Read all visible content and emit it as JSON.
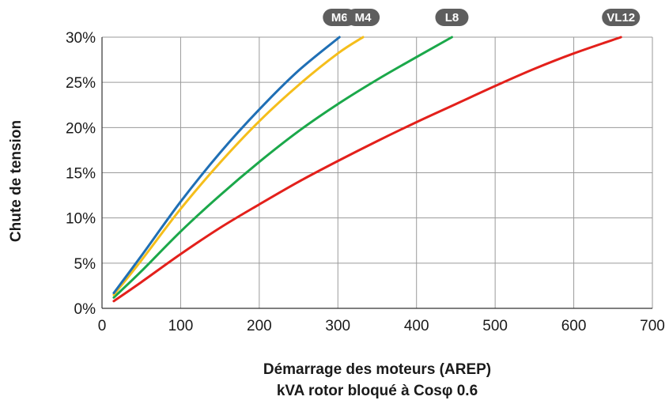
{
  "chart_data": {
    "type": "line",
    "xlabel": [
      "Démarrage des moteurs (AREP)",
      "kVA rotor bloqué à Cosφ 0.6"
    ],
    "ylabel": "Chute de tension",
    "xlim": [
      0,
      700
    ],
    "ylim": [
      0,
      30
    ],
    "x_ticks": [
      0,
      100,
      200,
      300,
      400,
      500,
      600,
      700
    ],
    "y_ticks": [
      0,
      5,
      10,
      15,
      20,
      25,
      30
    ],
    "y_tick_labels": [
      "0%",
      "5%",
      "10%",
      "15%",
      "20%",
      "25%",
      "30%"
    ],
    "grid": true,
    "legend": "end-of-line tags above plot",
    "series": [
      {
        "name": "M6",
        "color": "#1f6fb5",
        "points": [
          [
            15,
            1.7
          ],
          [
            50,
            5.8
          ],
          [
            100,
            11.8
          ],
          [
            150,
            17.2
          ],
          [
            200,
            22.0
          ],
          [
            250,
            26.3
          ],
          [
            302,
            30.0
          ]
        ]
      },
      {
        "name": "M4",
        "color": "#f5be1b",
        "points": [
          [
            15,
            1.5
          ],
          [
            50,
            5.3
          ],
          [
            100,
            11.0
          ],
          [
            150,
            16.1
          ],
          [
            200,
            20.7
          ],
          [
            250,
            24.7
          ],
          [
            300,
            28.2
          ],
          [
            332,
            30.0
          ]
        ]
      },
      {
        "name": "L8",
        "color": "#1ba84a",
        "points": [
          [
            15,
            1.2
          ],
          [
            50,
            4.1
          ],
          [
            100,
            8.5
          ],
          [
            150,
            12.5
          ],
          [
            200,
            16.2
          ],
          [
            250,
            19.6
          ],
          [
            300,
            22.6
          ],
          [
            350,
            25.3
          ],
          [
            400,
            27.8
          ],
          [
            445,
            30.0
          ]
        ]
      },
      {
        "name": "VL12",
        "color": "#e3201b",
        "points": [
          [
            15,
            0.8
          ],
          [
            50,
            2.9
          ],
          [
            100,
            6.0
          ],
          [
            150,
            8.9
          ],
          [
            200,
            11.5
          ],
          [
            250,
            14.0
          ],
          [
            300,
            16.3
          ],
          [
            350,
            18.5
          ],
          [
            400,
            20.6
          ],
          [
            450,
            22.6
          ],
          [
            500,
            24.6
          ],
          [
            550,
            26.5
          ],
          [
            600,
            28.2
          ],
          [
            660,
            30.0
          ]
        ]
      }
    ]
  }
}
